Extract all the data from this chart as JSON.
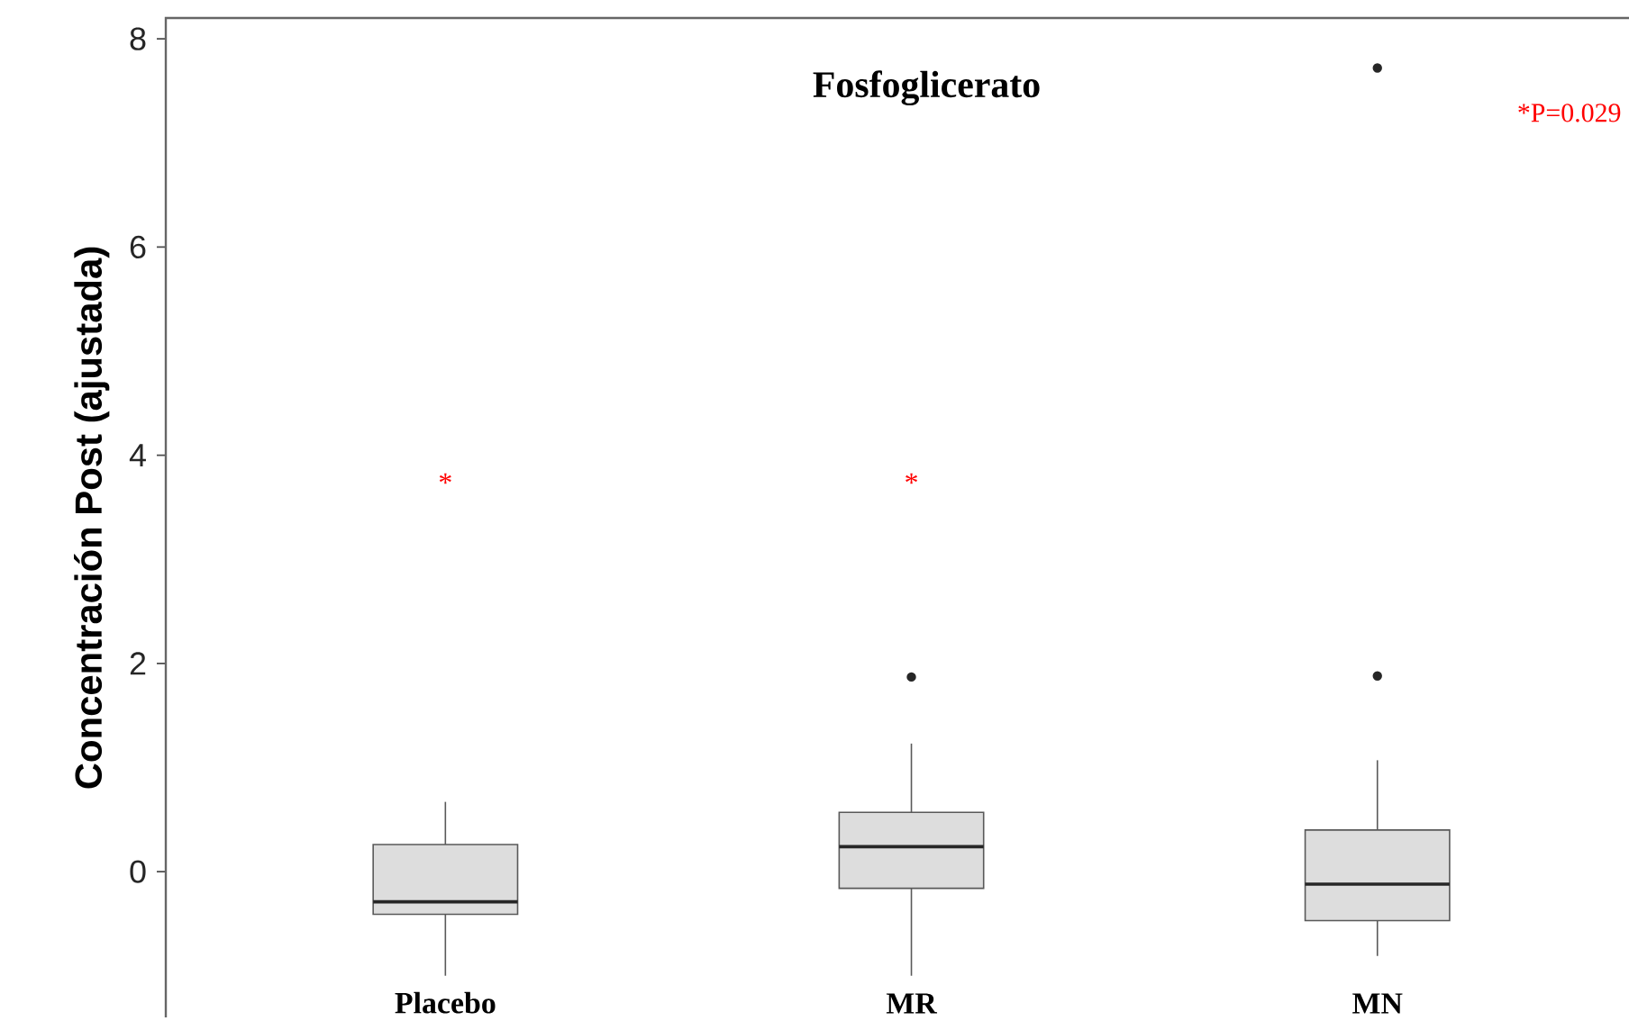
{
  "chart_data": {
    "type": "box",
    "title": "Fosfoglicerato",
    "ylabel": "Concentración Post (ajustada)",
    "categories": [
      "Placebo",
      "MR",
      "MN"
    ],
    "boxes": [
      {
        "low": -1.0,
        "q1": -0.41,
        "median": -0.29,
        "q3": 0.26,
        "high": 0.67
      },
      {
        "low": -1.0,
        "q1": -0.16,
        "median": 0.24,
        "q3": 0.57,
        "high": 1.23,
        "outliers": [
          1.87
        ]
      },
      {
        "low": -0.81,
        "q1": -0.47,
        "median": -0.12,
        "q3": 0.4,
        "high": 1.07,
        "outliers": [
          1.88,
          7.72
        ]
      }
    ],
    "color": "#dddddd",
    "ylim": [
      -1.4,
      8.2
    ],
    "yticks": [
      0,
      2,
      4,
      6,
      8
    ],
    "grid": false,
    "annotations": [
      "*",
      "*",
      "*P=0.029"
    ]
  }
}
